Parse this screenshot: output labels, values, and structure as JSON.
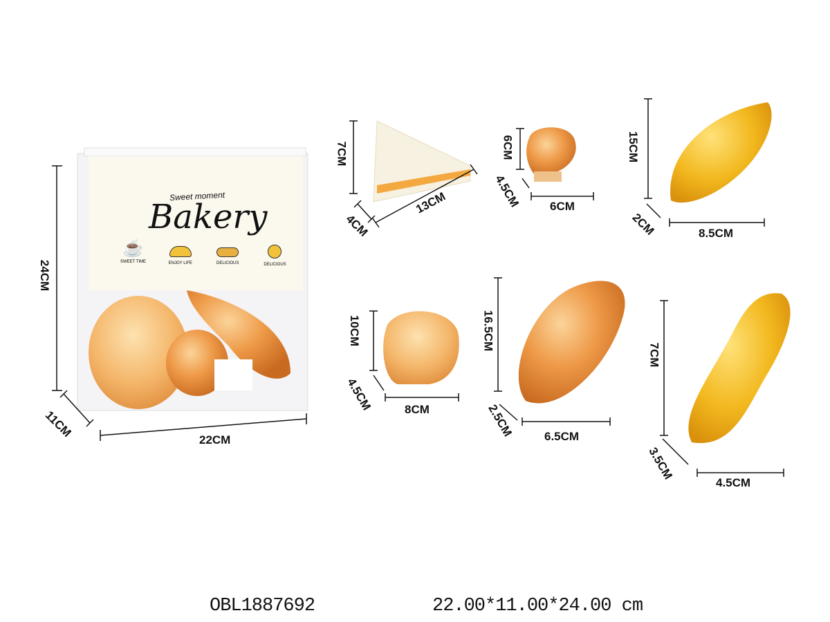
{
  "bag": {
    "subtitle": "Sweet moment",
    "title": "Bakery",
    "icons": [
      {
        "icon": "coffee-cup-icon",
        "label": "SWEET TIME"
      },
      {
        "icon": "croissant-icon",
        "label": "ENJOY LIFE"
      },
      {
        "icon": "bread-loaf-icon",
        "label": "DELICIOUS"
      },
      {
        "icon": "cinnamon-roll-icon",
        "label": "DELICIOUS"
      }
    ],
    "dims": {
      "height": "24CM",
      "depth": "11CM",
      "width": "22CM"
    }
  },
  "items": {
    "sandwich": {
      "height": "7CM",
      "depth": "4CM",
      "width": "13CM"
    },
    "muffin": {
      "height": "6CM",
      "depth": "4.5CM",
      "width": "6CM"
    },
    "croissant": {
      "height": "15CM",
      "depth": "2CM",
      "width": "8.5CM"
    },
    "burger_bun": {
      "height": "10CM",
      "depth": "4.5CM",
      "width": "8CM"
    },
    "baguette": {
      "height": "16.5CM",
      "depth": "2.5CM",
      "width": "6.5CM"
    },
    "braid": {
      "height": "7CM",
      "depth": "3.5CM",
      "width": "4.5CM"
    }
  },
  "footer": {
    "sku": "OBL1887692",
    "package_size": "22.00*11.00*24.00 cm"
  },
  "colors": {
    "bread": "#e8903a",
    "croissant": "#f2b81e",
    "bun": "#f4c27a",
    "line": "#111111"
  }
}
